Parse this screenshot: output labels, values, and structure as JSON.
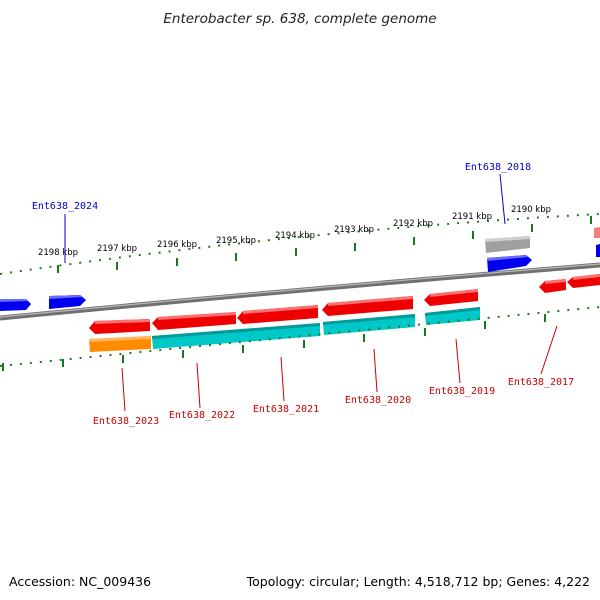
{
  "title": "Enterobacter sp. 638, complete genome",
  "footer": {
    "accession": "Accession: NC_009436",
    "summary": "Topology: circular; Length: 4,518,712 bp; Genes: 4,222"
  },
  "colors": {
    "backbone": "#808080",
    "tick": "#1a7a1a",
    "gene_red": "#ee0000",
    "gene_blue": "#0000ee",
    "gene_cyan": "#00c8c8",
    "gene_orange": "#ff8c00",
    "gene_gray": "#a0a0a0",
    "gene_pink": "#f08080",
    "label_red": "#cc0000",
    "label_blue": "#0000cc"
  },
  "scale_labels": [
    "2198 kbp",
    "2197 kbp",
    "2196 kbp",
    "2195 kbp",
    "2194 kbp",
    "2193 kbp",
    "2192 kbp",
    "2191 kbp",
    "2190 kbp"
  ],
  "gene_labels": [
    {
      "text": "Ent638_2024",
      "color": "blue"
    },
    {
      "text": "Ent638_2018",
      "color": "blue"
    },
    {
      "text": "Ent638_2023",
      "color": "red"
    },
    {
      "text": "Ent638_2022",
      "color": "red"
    },
    {
      "text": "Ent638_2021",
      "color": "red"
    },
    {
      "text": "Ent638_2020",
      "color": "red"
    },
    {
      "text": "Ent638_2019",
      "color": "red"
    },
    {
      "text": "Ent638_2017",
      "color": "red"
    }
  ]
}
